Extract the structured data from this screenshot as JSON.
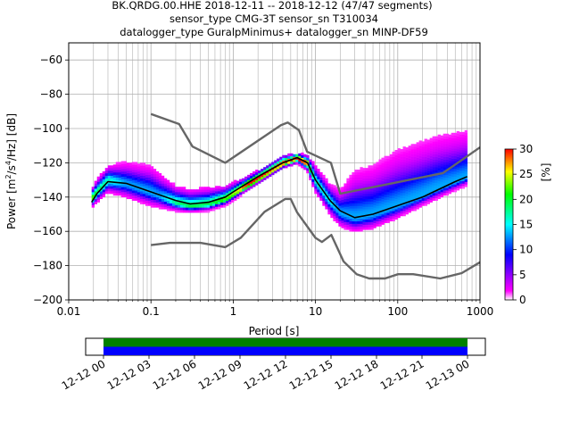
{
  "chart_data": [
    {
      "type": "heatmap",
      "subtype": "probabilistic-power-spectral-density",
      "title_lines": [
        "BK.QRDG.00.HHE   2018-12-11 -- 2018-12-12  (47/47 segments)",
        "sensor_type CMG-3T sensor_sn T310034",
        "datalogger_type GuralpMinimus+ datalogger_sn MINP-DF59"
      ],
      "xlabel": "Period [s]",
      "ylabel_parts": [
        "Power [m",
        "2",
        "/s",
        "4",
        "/Hz] [dB]"
      ],
      "x_scale": "log",
      "xlim": [
        0.01,
        1000
      ],
      "ylim": [
        -200,
        -50
      ],
      "x_ticks": [
        0.01,
        0.1,
        1,
        10,
        100,
        1000
      ],
      "x_tick_labels": [
        "0.01",
        "0.1",
        "1",
        "10",
        "100",
        "1000"
      ],
      "y_ticks": [
        -200,
        -180,
        -160,
        -140,
        -120,
        -100,
        -80,
        -60
      ],
      "y_tick_labels": [
        "−200",
        "−180",
        "−160",
        "−140",
        "−120",
        "−100",
        "−80",
        "−60"
      ],
      "grid": true,
      "colorbar": {
        "label": "[%]",
        "range": [
          0,
          30
        ],
        "ticks": [
          0,
          5,
          10,
          15,
          20,
          25,
          30
        ],
        "tick_labels": [
          "0",
          "5",
          "10",
          "15",
          "20",
          "25",
          "30"
        ],
        "colors": [
          "#ffffff",
          "#ff00ff",
          "#0000ff",
          "#00ffff",
          "#00ff00",
          "#ffff00",
          "#ff0000"
        ]
      },
      "density_bands": {
        "period": [
          0.019,
          0.022,
          0.03,
          0.05,
          0.1,
          0.2,
          0.3,
          0.5,
          0.8,
          1,
          2,
          4,
          6,
          8,
          10,
          15,
          20,
          30,
          50,
          100,
          200,
          300,
          500,
          700
        ],
        "mode": [
          -142,
          -138,
          -131,
          -133,
          -138,
          -144,
          -146,
          -145,
          -142,
          -139,
          -130,
          -121,
          -118,
          -121,
          -131,
          -143,
          -150,
          -153,
          -151,
          -146,
          -140,
          -136,
          -132,
          -129
        ],
        "lower": [
          -146,
          -143,
          -137,
          -140,
          -145,
          -148,
          -149,
          -148,
          -145,
          -142,
          -132,
          -123,
          -120,
          -125,
          -137,
          -150,
          -157,
          -160,
          -158,
          -152,
          -145,
          -141,
          -136,
          -133
        ],
        "upper": [
          -136,
          -130,
          -122,
          -120,
          -122,
          -134,
          -136,
          -135,
          -134,
          -132,
          -125,
          -116,
          -115,
          -116,
          -122,
          -133,
          -136,
          -125,
          -122,
          -113,
          -108,
          -105,
          -103,
          -102
        ]
      },
      "series": [
        {
          "name": "",
          "style": "mean",
          "color": "#000000",
          "x": [
            0.019,
            0.022,
            0.03,
            0.05,
            0.1,
            0.2,
            0.3,
            0.5,
            0.8,
            1,
            2,
            4,
            6,
            8,
            10,
            15,
            20,
            30,
            50,
            100,
            200,
            300,
            500,
            700
          ],
          "y": [
            -143,
            -138,
            -131,
            -132,
            -137,
            -142,
            -144,
            -143,
            -140,
            -137,
            -128,
            -120,
            -117,
            -120,
            -130,
            -142,
            -148,
            -152,
            -150,
            -145,
            -140,
            -136,
            -131,
            -128
          ]
        },
        {
          "name": "",
          "style": "noise-model-high",
          "color": "#666666",
          "x": [
            0.1,
            0.22,
            0.32,
            0.8,
            3.8,
            4.6,
            6.3,
            7.9,
            15.4,
            20,
            354.8,
            1000
          ],
          "y": [
            -91.5,
            -97.4,
            -110.5,
            -120,
            -98,
            -96.5,
            -101,
            -113.5,
            -120,
            -138,
            -126,
            -111
          ]
        },
        {
          "name": "",
          "style": "noise-model-low",
          "color": "#666666",
          "x": [
            0.1,
            0.17,
            0.4,
            0.8,
            1.24,
            2.4,
            4.3,
            5,
            6,
            10,
            12,
            15.6,
            21.9,
            31.6,
            45,
            70,
            101,
            154,
            328,
            600,
            1000
          ],
          "y": [
            -168,
            -166.7,
            -166.7,
            -169.2,
            -163.7,
            -148.6,
            -141.1,
            -141.1,
            -149,
            -163.8,
            -166.2,
            -162.1,
            -177.5,
            -185,
            -187.5,
            -187.5,
            -185,
            -185,
            -187.5,
            -184.4,
            -178
          ]
        }
      ]
    },
    {
      "type": "timeline",
      "description": "data coverage bar",
      "tick_labels": [
        "12-12 00",
        "12-12 03",
        "12-12 06",
        "12-12 09",
        "12-12 12",
        "12-12 15",
        "12-12 18",
        "12-12 21",
        "12-13 00"
      ],
      "bars": [
        {
          "name": "",
          "color": "#008000",
          "start": "12-12 00",
          "end": "12-13 00"
        },
        {
          "name": "",
          "color": "#0000ff",
          "start": "12-12 00",
          "end": "12-13 00"
        }
      ]
    }
  ]
}
